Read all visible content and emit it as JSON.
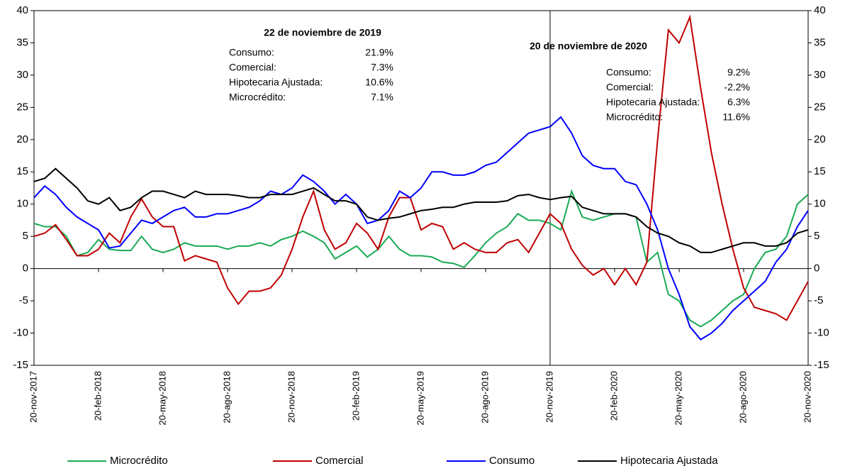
{
  "chart_data": {
    "type": "line",
    "categories": [
      "20-nov-2017",
      null,
      null,
      null,
      null,
      null,
      "20-feb-2018",
      null,
      null,
      null,
      null,
      null,
      "20-may-2018",
      null,
      null,
      null,
      null,
      null,
      "20-ago-2018",
      null,
      null,
      null,
      null,
      null,
      "20-nov-2018",
      null,
      null,
      null,
      null,
      null,
      "20-feb-2019",
      null,
      null,
      null,
      null,
      null,
      "20-may-2019",
      null,
      null,
      null,
      null,
      null,
      "20-ago-2019",
      null,
      null,
      null,
      null,
      null,
      "20-nov-2019",
      null,
      null,
      null,
      null,
      null,
      "20-feb-2020",
      null,
      null,
      null,
      null,
      null,
      "20-may-2020",
      null,
      null,
      null,
      null,
      null,
      "20-ago-2020",
      null,
      null,
      null,
      null,
      null,
      "20-nov-2020"
    ],
    "series": [
      {
        "name": "Microcrédito",
        "color": "#1aaa55",
        "values": [
          7,
          6.5,
          6.5,
          5,
          2,
          2.5,
          4.5,
          3,
          2.8,
          2.8,
          5,
          3,
          2.5,
          3,
          4,
          3.5,
          3.5,
          3.5,
          3,
          3.5,
          3.5,
          4,
          3.5,
          4.5,
          5,
          5.8,
          5,
          4,
          1.5,
          2.5,
          3.5,
          1.8,
          3,
          5,
          3,
          2,
          2,
          1.8,
          1,
          0.8,
          0.2,
          2,
          4,
          5.5,
          6.5,
          8.5,
          7.5,
          7.5,
          7,
          6,
          12,
          8,
          7.5,
          8,
          8.5,
          8.5,
          8,
          1,
          2.5,
          -4,
          -5,
          -8,
          -9,
          -8,
          -6.5,
          -5,
          -4,
          0,
          2.5,
          3,
          5,
          10,
          11.5
        ]
      },
      {
        "name": "Comercial",
        "color": "#c00000",
        "values": [
          5,
          5.5,
          6.8,
          4.5,
          2,
          2,
          3,
          5.5,
          4,
          8,
          10.8,
          8,
          6.5,
          6.5,
          1.2,
          2,
          1.5,
          1,
          -3,
          -5.5,
          -3.5,
          -3.5,
          -3,
          -1,
          3,
          8,
          12,
          6,
          3,
          4,
          7,
          5.5,
          3,
          8,
          11,
          11,
          6,
          7,
          6.5,
          3,
          4,
          3,
          2.5,
          2.5,
          4,
          4.5,
          2.5,
          5.5,
          8.5,
          7,
          3,
          0.5,
          -1,
          0,
          -2.5,
          0,
          -2.5,
          1,
          20,
          37,
          35,
          39,
          28,
          18,
          10,
          3,
          -3,
          -6,
          -6.5,
          -7,
          -8,
          -5,
          -2
        ]
      },
      {
        "name": "Consumo",
        "color": "#0000ff",
        "values": [
          11,
          12.8,
          11.5,
          9.5,
          8,
          7,
          6,
          3.2,
          3.5,
          5.5,
          7.5,
          7,
          8,
          9,
          9.5,
          8,
          8,
          8.5,
          8.5,
          9,
          9.5,
          10.5,
          12,
          11.5,
          12.5,
          14.5,
          13.5,
          12,
          10,
          11.5,
          10,
          7,
          7.5,
          9,
          12,
          11,
          12.5,
          15,
          15,
          14.5,
          14.5,
          15,
          16,
          16.5,
          18,
          19.5,
          21,
          21.5,
          22,
          23.5,
          21,
          17.5,
          16,
          15.5,
          15.5,
          13.5,
          13,
          10,
          6,
          0,
          -4,
          -9,
          -11,
          -10,
          -8.5,
          -6.5,
          -5,
          -3.5,
          -2,
          1,
          3,
          6.5,
          9
        ]
      },
      {
        "name": "Hipotecaria Ajustada",
        "color": "#000000",
        "values": [
          13.5,
          14,
          15.5,
          14,
          12.5,
          10.5,
          10,
          11,
          9,
          9.5,
          11,
          12,
          12,
          11.5,
          11,
          12,
          11.5,
          11.5,
          11.5,
          11.3,
          11,
          11,
          11.5,
          11.5,
          11.5,
          12,
          12.5,
          11.5,
          10.5,
          10.5,
          10,
          8,
          7.5,
          7.8,
          8,
          8.5,
          9,
          9.2,
          9.5,
          9.5,
          10,
          10.3,
          10.3,
          10.3,
          10.5,
          11.3,
          11.5,
          11,
          10.7,
          11,
          11.2,
          9.5,
          9,
          8.5,
          8.5,
          8.5,
          8,
          6.5,
          5.5,
          5,
          4,
          3.5,
          2.5,
          2.5,
          3,
          3.5,
          4,
          4,
          3.5,
          3.5,
          4,
          5.5,
          6
        ]
      }
    ],
    "ylim": [
      -15,
      40
    ],
    "yticks": [
      -15,
      -10,
      -5,
      0,
      5,
      10,
      15,
      20,
      25,
      30,
      35,
      40
    ],
    "y2lim": [
      -15,
      40
    ],
    "y2ticks": [
      -15,
      -10,
      -5,
      0,
      5,
      10,
      15,
      20,
      25,
      30,
      35,
      40
    ],
    "reference_line_x": "20-nov-2019",
    "legend": "bottom",
    "annotations": [
      {
        "title": "22 de noviembre de 2019",
        "rows": [
          {
            "label": "Consumo:",
            "value": "21.9%"
          },
          {
            "label": "Comercial:",
            "value": "7.3%"
          },
          {
            "label": "Hipotecaria Ajustada:",
            "value": "10.6%"
          },
          {
            "label": "Microcrédito:",
            "value": "7.1%"
          }
        ]
      },
      {
        "title": "20 de noviembre de 2020",
        "rows": [
          {
            "label": "Consumo:",
            "value": "9.2%"
          },
          {
            "label": "Comercial:",
            "value": "-2.2%"
          },
          {
            "label": "Hipotecaria Ajustada:",
            "value": "6.3%"
          },
          {
            "label": "Microcrédito:",
            "value": "11.6%"
          }
        ]
      }
    ]
  }
}
